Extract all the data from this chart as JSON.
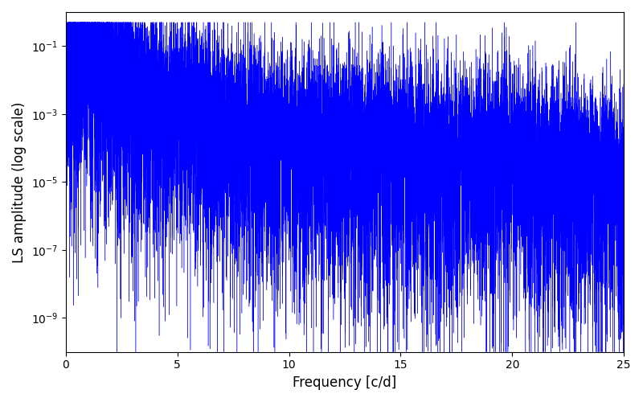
{
  "title": "",
  "xlabel": "Frequency [c/d]",
  "ylabel": "LS amplitude (log scale)",
  "xlim": [
    0,
    25
  ],
  "ylim": [
    1e-10,
    1.0
  ],
  "line_color": "#0000ff",
  "line_width": 0.3,
  "background_color": "#ffffff",
  "yticks": [
    1e-09,
    1e-07,
    1e-05,
    0.001,
    0.1
  ],
  "xticks": [
    0,
    5,
    10,
    15,
    20,
    25
  ],
  "n_points": 12000,
  "seed": 7,
  "peak_amp": 0.12,
  "decay": 0.7,
  "noise_floor": 3e-06
}
